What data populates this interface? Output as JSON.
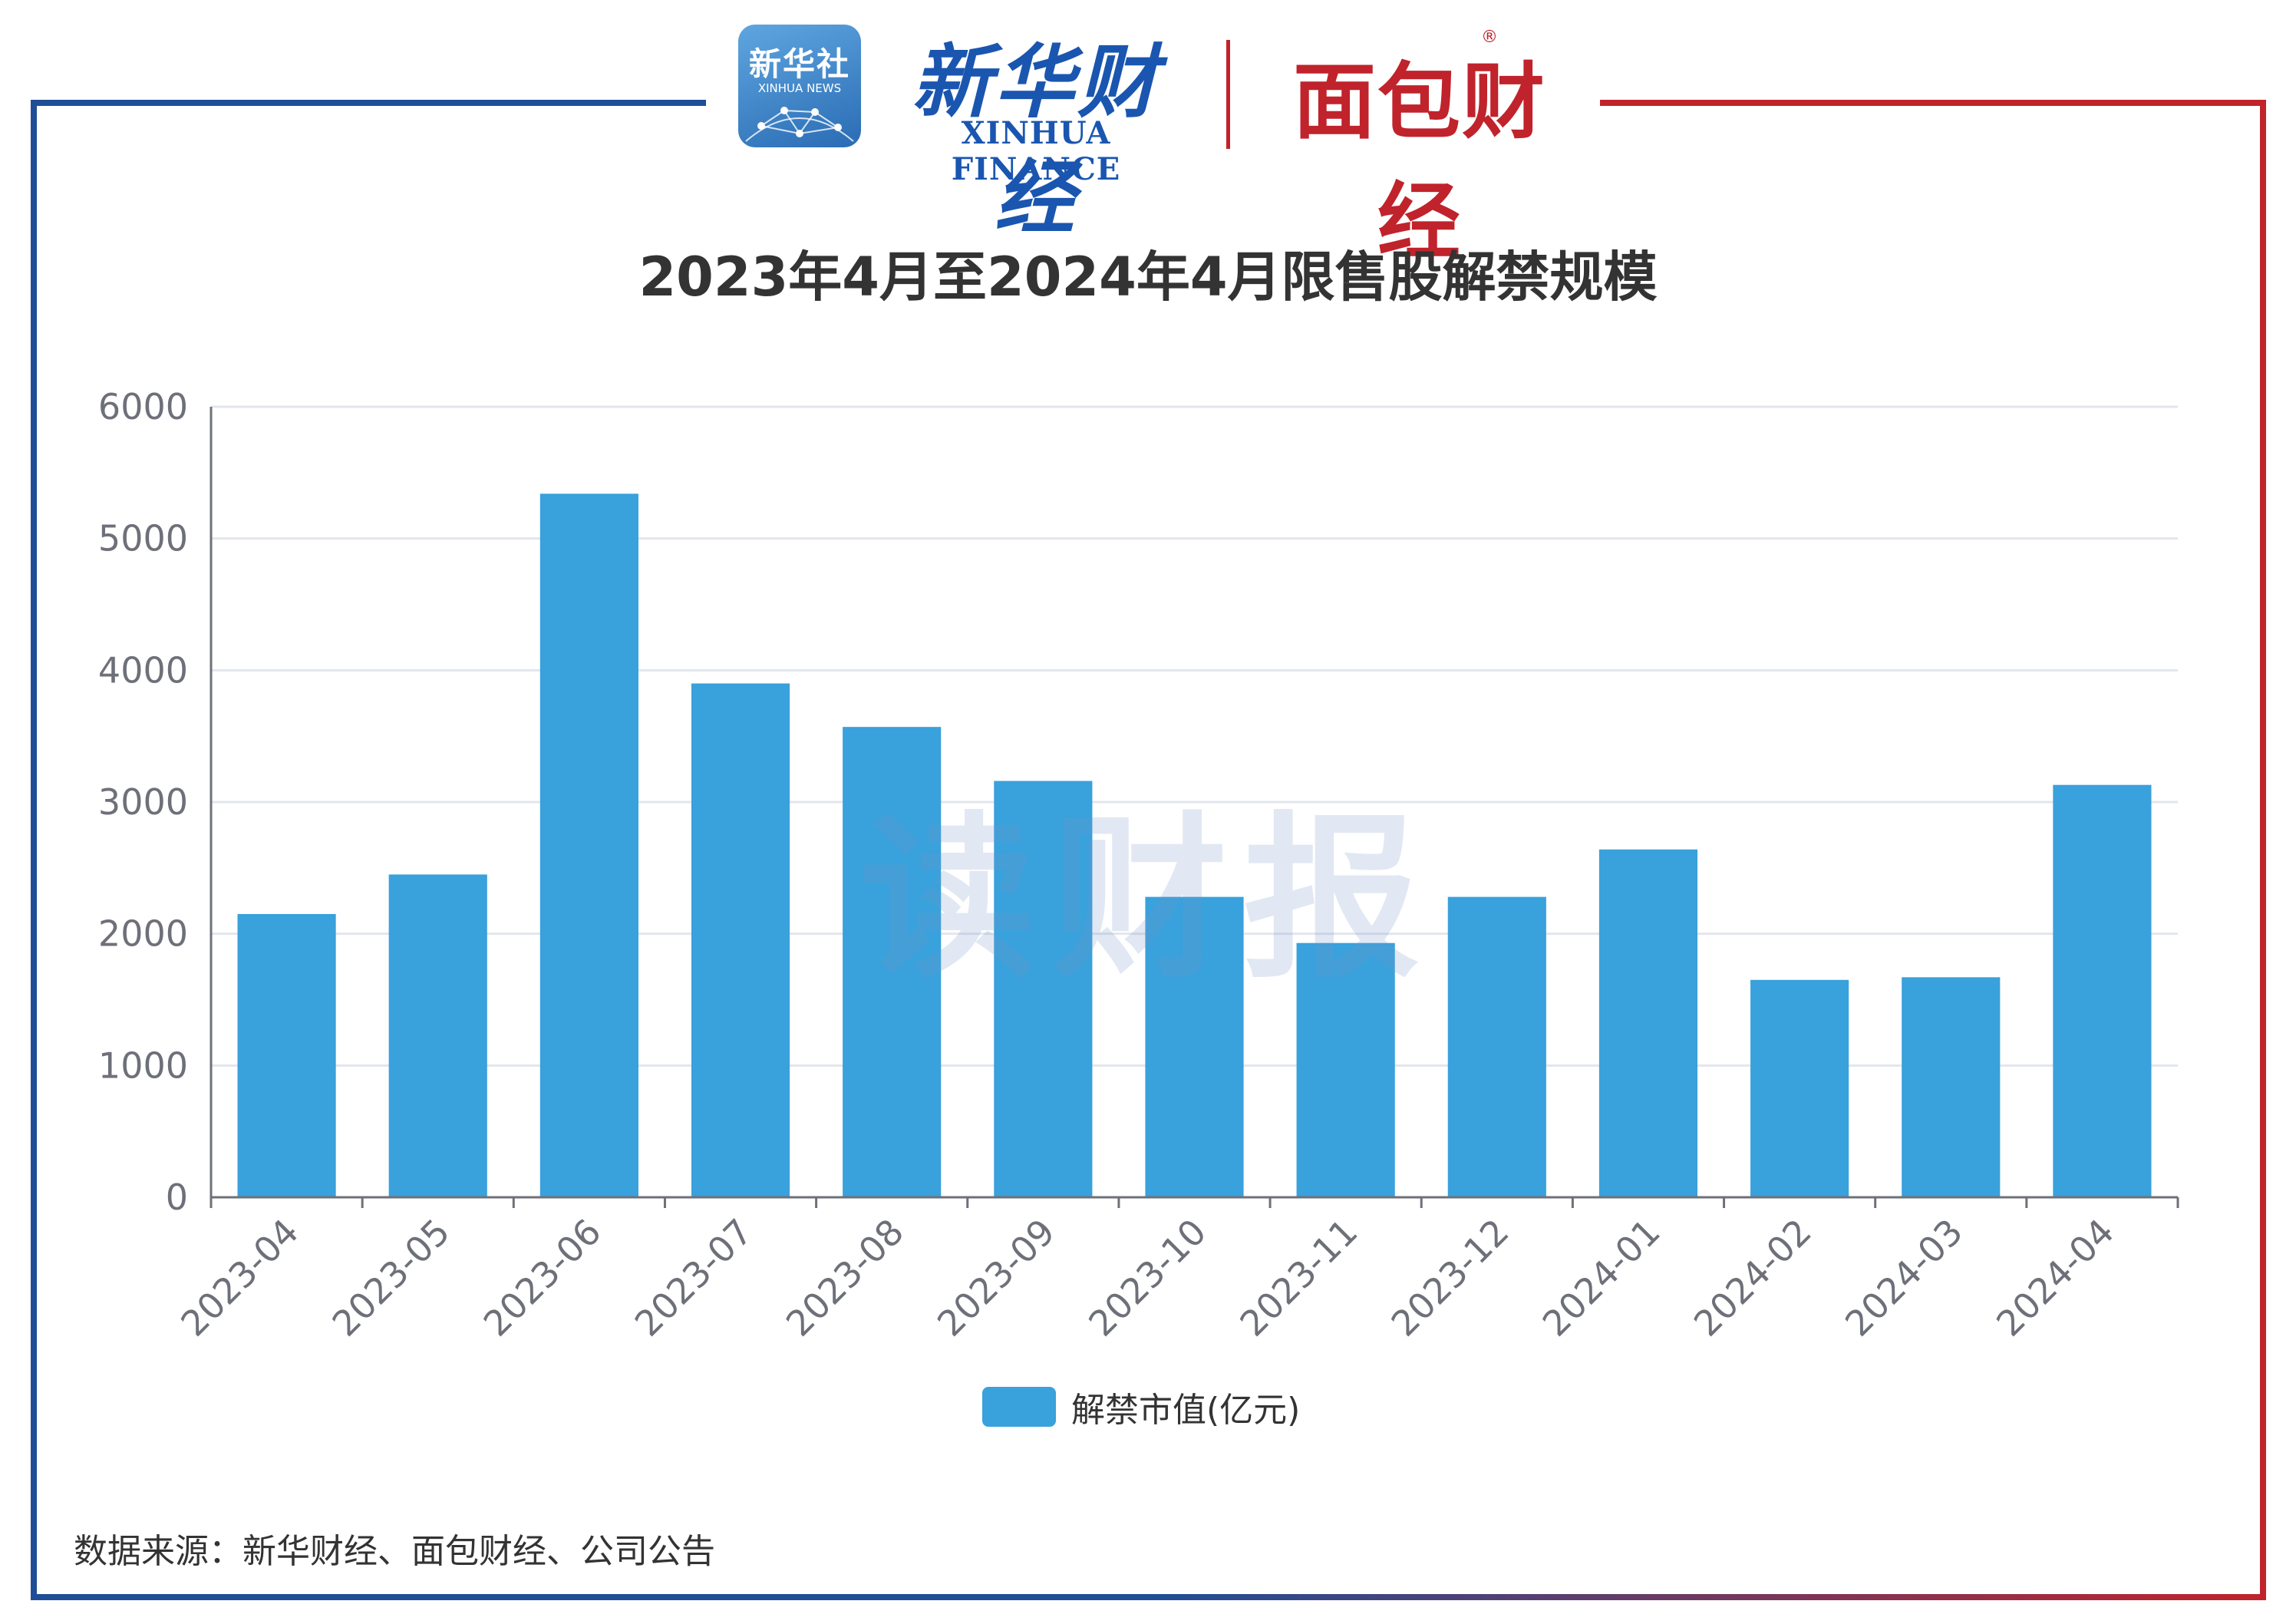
{
  "header": {
    "xinhua_logo_cn": "新华社",
    "xinhua_logo_en": "XINHUA NEWS",
    "xinhua_finance_cn": "新华财经",
    "xinhua_finance_en": "XINHUA FINANCE",
    "mianbao_logo": "面包财经",
    "registered_mark": "®"
  },
  "watermark": "读财报",
  "source": "数据来源：新华财经、面包财经、公司公告",
  "colors": {
    "bar": "#39a1dc",
    "frame_left": "#1f4e96",
    "frame_right": "#c0232b"
  },
  "chart_data": {
    "type": "bar",
    "title": "2023年4月至2024年4月限售股解禁规模",
    "categories": [
      "2023-04",
      "2023-05",
      "2023-06",
      "2023-07",
      "2023-08",
      "2023-09",
      "2023-10",
      "2023-11",
      "2023-12",
      "2024-01",
      "2024-02",
      "2024-03",
      "2024-04"
    ],
    "series": [
      {
        "name": "解禁市值(亿元)",
        "values": [
          2150,
          2450,
          5340,
          3900,
          3570,
          3160,
          2280,
          1930,
          2280,
          2640,
          1650,
          1670,
          3130
        ]
      }
    ],
    "ylim": [
      0,
      6000
    ],
    "yticks": [
      0,
      1000,
      2000,
      3000,
      4000,
      5000,
      6000
    ],
    "grid": true,
    "legend_position": "bottom"
  }
}
